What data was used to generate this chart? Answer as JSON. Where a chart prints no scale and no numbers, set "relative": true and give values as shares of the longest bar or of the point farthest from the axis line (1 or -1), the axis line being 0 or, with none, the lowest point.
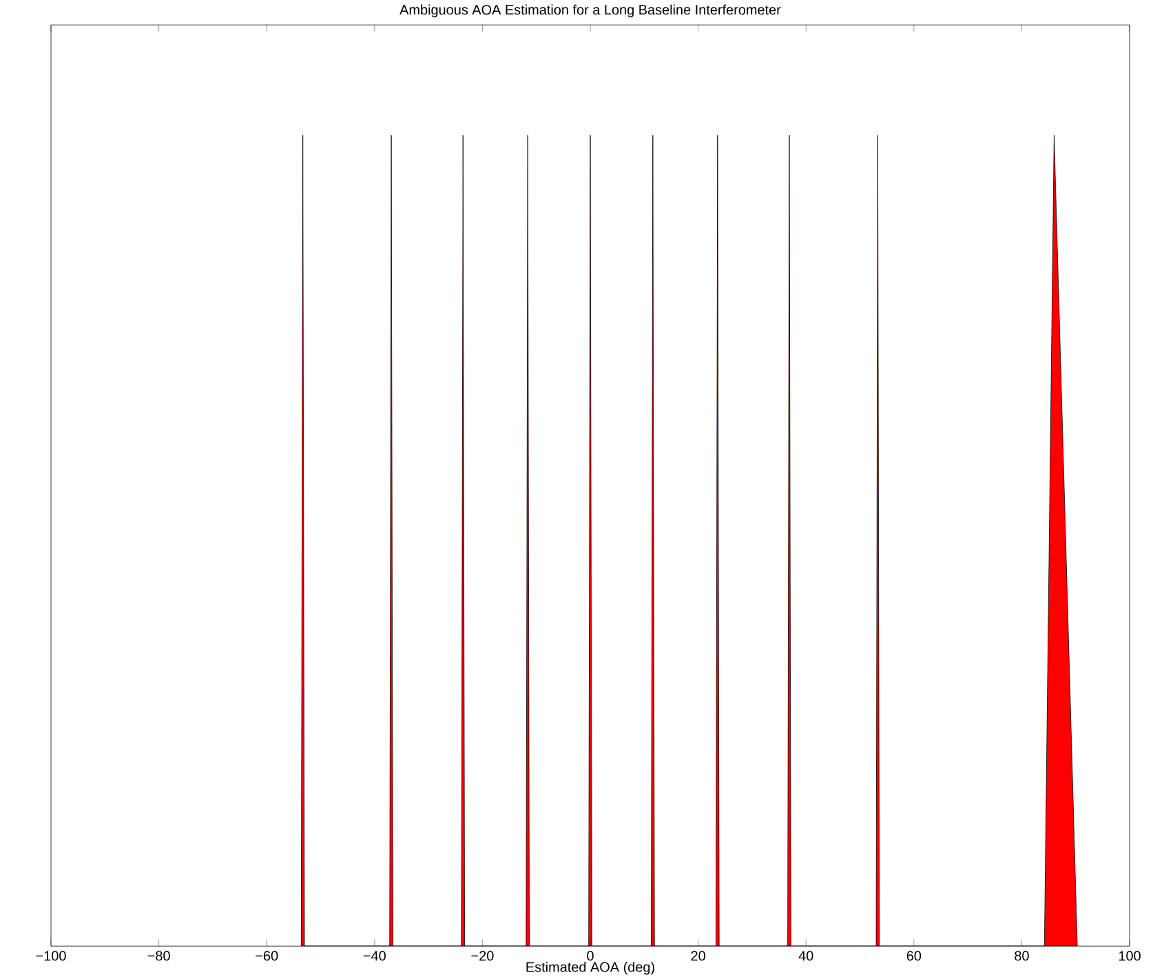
{
  "chart_data": {
    "type": "area",
    "title": "Ambiguous AOA Estimation for a Long Baseline Interferometer",
    "xlabel": "Estimated AOA (deg)",
    "relative": true,
    "xlim": [
      -100,
      100
    ],
    "xticks": [
      {
        "value": -100,
        "label": "−100"
      },
      {
        "value": -80,
        "label": "−80"
      },
      {
        "value": -60,
        "label": "−60"
      },
      {
        "value": -40,
        "label": "−40"
      },
      {
        "value": -20,
        "label": "−20"
      },
      0,
      20,
      40,
      60,
      80,
      100
    ],
    "tick_labels": "x",
    "grid": false,
    "series": [
      {
        "color": "#ff0000",
        "x": [
          -53.6,
          -53.3,
          -53.0,
          -37.2,
          -36.9,
          -36.6,
          -23.9,
          -23.6,
          -23.3,
          -11.9,
          -11.6,
          -11.3,
          -0.3,
          0,
          0.3,
          11.3,
          11.6,
          11.9,
          23.3,
          23.6,
          23.9,
          36.6,
          36.9,
          37.2,
          53.0,
          53.3,
          53.6,
          84.2,
          86.0,
          90.3
        ],
        "values": [
          0,
          1,
          0,
          0,
          1,
          0,
          0,
          1,
          0,
          0,
          1,
          0,
          0,
          1,
          0,
          0,
          1,
          0,
          0,
          1,
          0,
          0,
          1,
          0,
          0,
          1,
          0,
          0,
          1,
          0
        ]
      }
    ]
  }
}
